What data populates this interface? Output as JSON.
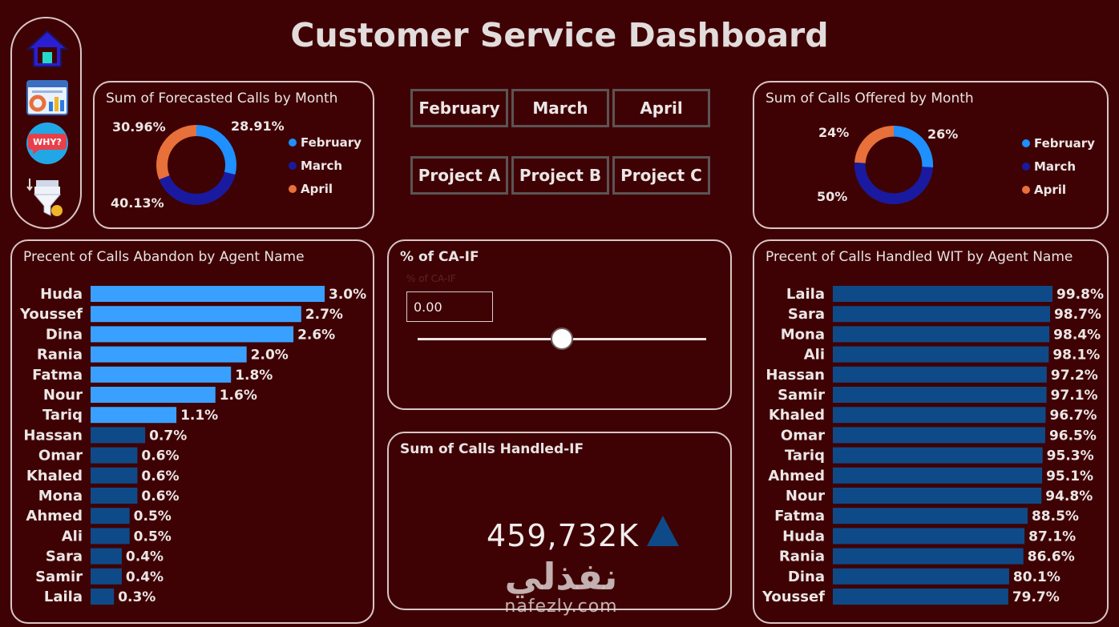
{
  "title": "Customer Service Dashboard",
  "nav": {
    "icons": [
      "home-icon",
      "dashboard-icon",
      "why-icon",
      "filter-icon"
    ],
    "why_text": "WHY?"
  },
  "colors": {
    "background": "#3f0204",
    "panel_border": "#d9c6c6",
    "february": "#1e90ff",
    "march": "#1a1aa0",
    "april": "#e8703a",
    "bar_highlight": "#3aa0ff",
    "bar_dark": "#0f4a88"
  },
  "forecast_panel": {
    "title": "Sum of Forecasted Calls by Month",
    "slices": [
      {
        "label": "February",
        "value": 28.91,
        "display": "28.91%",
        "color": "#1e90ff"
      },
      {
        "label": "March",
        "value": 40.13,
        "display": "40.13%",
        "color": "#1a1aa0"
      },
      {
        "label": "April",
        "value": 30.96,
        "display": "30.96%",
        "color": "#e8703a"
      }
    ]
  },
  "offered_panel": {
    "title": "Sum of Calls Offered by Month",
    "slices": [
      {
        "label": "February",
        "value": 26,
        "display": "26%",
        "color": "#1e90ff"
      },
      {
        "label": "March",
        "value": 50,
        "display": "50%",
        "color": "#1a1aa0"
      },
      {
        "label": "April",
        "value": 24,
        "display": "24%",
        "color": "#e8703a"
      }
    ]
  },
  "slicers": {
    "months": [
      "February",
      "March",
      "April"
    ],
    "projects": [
      "Project A",
      "Project B",
      "Project C"
    ]
  },
  "slider_panel": {
    "title": "% of CA-IF",
    "caption": "% of CA-IF",
    "value": "0.00",
    "position": 0.5
  },
  "kpi_panel": {
    "title": "Sum of Calls Handled-IF",
    "value": "459,732K",
    "trend_icon": "up-triangle-icon"
  },
  "watermark": {
    "arabic": "نفذلي",
    "latin": "nafezly.com"
  },
  "abandon_panel": {
    "title": "Precent of Calls Abandon by Agent Name"
  },
  "handled_panel": {
    "title": "Precent of Calls Handled WIT by Agent Name"
  },
  "chart_data": [
    {
      "type": "pie",
      "title": "Sum of Forecasted Calls by Month",
      "categories": [
        "February",
        "March",
        "April"
      ],
      "values": [
        28.91,
        40.13,
        30.96
      ],
      "unit": "%",
      "legend": "right"
    },
    {
      "type": "pie",
      "title": "Sum of Calls Offered by Month",
      "categories": [
        "February",
        "March",
        "April"
      ],
      "values": [
        26,
        50,
        24
      ],
      "unit": "%",
      "legend": "right"
    },
    {
      "type": "bar",
      "title": "Precent of Calls Abandon by Agent Name",
      "orientation": "horizontal",
      "categories": [
        "Huda",
        "Youssef",
        "Dina",
        "Rania",
        "Fatma",
        "Nour",
        "Tariq",
        "Hassan",
        "Omar",
        "Khaled",
        "Mona",
        "Ahmed",
        "Ali",
        "Sara",
        "Samir",
        "Laila"
      ],
      "values": [
        3.0,
        2.7,
        2.6,
        2.0,
        1.8,
        1.6,
        1.1,
        0.7,
        0.6,
        0.6,
        0.6,
        0.5,
        0.5,
        0.4,
        0.4,
        0.3
      ],
      "labels": [
        "3.0%",
        "2.7%",
        "2.6%",
        "2.0%",
        "1.8%",
        "1.6%",
        "1.1%",
        "0.7%",
        "0.6%",
        "0.6%",
        "0.6%",
        "0.5%",
        "0.5%",
        "0.4%",
        "0.4%",
        "0.3%"
      ],
      "highlighted_count": 7,
      "xlim": [
        0,
        3.0
      ]
    },
    {
      "type": "bar",
      "title": "Precent of Calls Handled WIT by Agent Name",
      "orientation": "horizontal",
      "categories": [
        "Laila",
        "Sara",
        "Mona",
        "Ali",
        "Hassan",
        "Samir",
        "Khaled",
        "Omar",
        "Tariq",
        "Ahmed",
        "Nour",
        "Fatma",
        "Huda",
        "Rania",
        "Dina",
        "Youssef"
      ],
      "values": [
        99.8,
        98.7,
        98.4,
        98.1,
        97.2,
        97.1,
        96.7,
        96.5,
        95.3,
        95.1,
        94.8,
        88.5,
        87.1,
        86.6,
        80.1,
        79.7
      ],
      "labels": [
        "99.8%",
        "98.7%",
        "98.4%",
        "98.1%",
        "97.2%",
        "97.1%",
        "96.7%",
        "96.5%",
        "95.3%",
        "95.1%",
        "94.8%",
        "88.5%",
        "87.1%",
        "86.6%",
        "80.1%",
        "79.7%"
      ],
      "xlim": [
        0,
        99.8
      ]
    }
  ]
}
